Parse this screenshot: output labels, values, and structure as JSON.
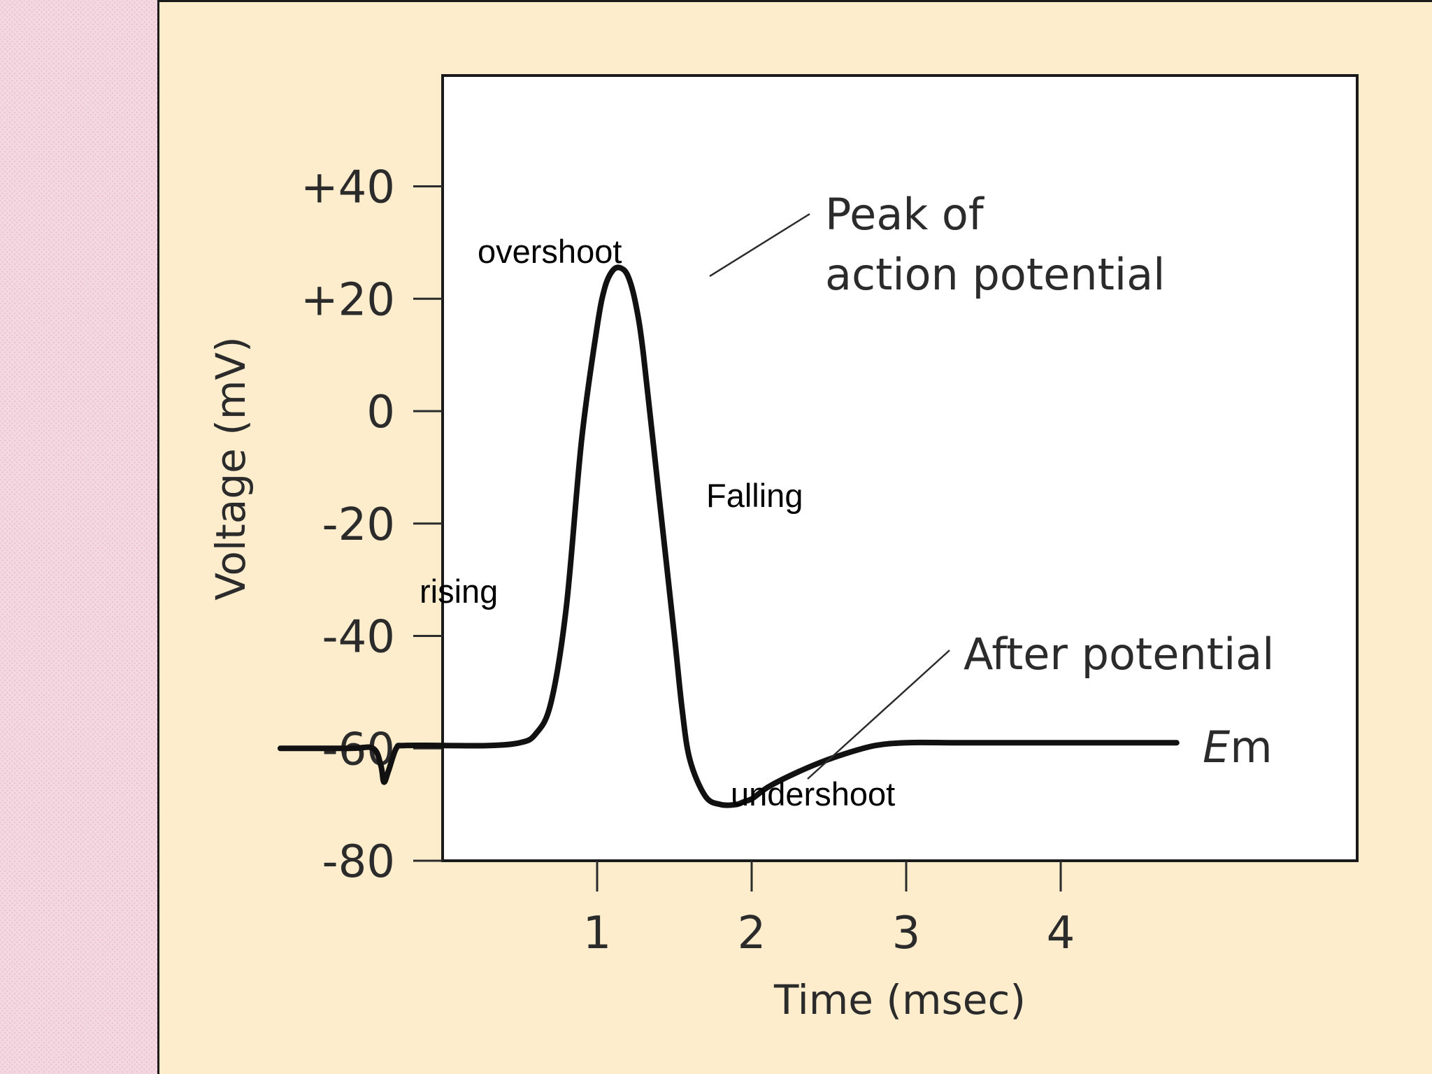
{
  "chart_data": {
    "type": "line",
    "title": "",
    "xlabel": "Time (msec)",
    "ylabel": "Voltage (mV)",
    "xlim": [
      -1.05,
      4.85
    ],
    "ylim": [
      -80,
      55
    ],
    "x_ticks": [
      {
        "value": 1,
        "label": "1"
      },
      {
        "value": 2,
        "label": "2"
      },
      {
        "value": 3,
        "label": "3"
      },
      {
        "value": 4,
        "label": "4"
      }
    ],
    "y_ticks": [
      {
        "value": 40,
        "label": "+40"
      },
      {
        "value": 20,
        "label": "+20"
      },
      {
        "value": 0,
        "label": "0"
      },
      {
        "value": -20,
        "label": "-20"
      },
      {
        "value": -40,
        "label": "-40"
      },
      {
        "value": -60,
        "label": "-60"
      },
      {
        "value": -80,
        "label": "-80"
      }
    ],
    "grid": false,
    "legend": "none",
    "series": [
      {
        "color": "#111111",
        "x": [
          -1.05,
          -0.6,
          -0.45,
          -0.4,
          -0.38,
          -0.35,
          -0.3,
          -0.25,
          0.0,
          0.3,
          0.5,
          0.6,
          0.7,
          0.8,
          0.9,
          1.0,
          1.05,
          1.1,
          1.15,
          1.2,
          1.25,
          1.3,
          1.4,
          1.5,
          1.55,
          1.6,
          1.7,
          1.8,
          1.9,
          1.95,
          2.0,
          2.05,
          2.1,
          2.2,
          2.4,
          2.6,
          2.8,
          3.0,
          3.3,
          3.6,
          3.9,
          4.2,
          4.5,
          4.75
        ],
        "y": [
          -60,
          -60,
          -60,
          -63,
          -66,
          -64,
          -60,
          -59.5,
          -59.5,
          -59.5,
          -59,
          -57.5,
          -52,
          -35,
          -5,
          15,
          22,
          25,
          25.5,
          24,
          19,
          10,
          -15,
          -40,
          -53,
          -62,
          -68.5,
          -70,
          -70,
          -69.5,
          -69,
          -68,
          -67,
          -65.5,
          -63,
          -61,
          -59.5,
          -59,
          -59,
          -59,
          -59,
          -59,
          -59,
          -59
        ]
      }
    ],
    "annotations": {
      "peak_line1": "Peak of",
      "peak_line2": "action potential",
      "after_potential": "After potential",
      "em_italic": "E",
      "em_rest": "m"
    },
    "overlay_labels": {
      "overshoot": "overshoot",
      "falling": "Falling",
      "rising": "rising",
      "undershoot": "undershoot"
    }
  }
}
